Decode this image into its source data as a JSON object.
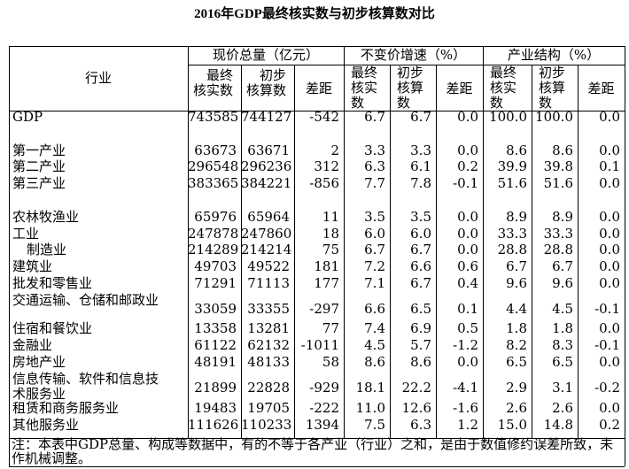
{
  "title": "2016年GDP最终核实数与初步核算数对比",
  "header": {
    "industry": "行业",
    "groups": [
      "现价总量（亿元）",
      "不变价增速（%）",
      "产业结构（%）"
    ],
    "sub": [
      "最终核实数",
      "初步核算数",
      "差距",
      "最终核实数",
      "初步核算数",
      "差距",
      "最终核实数",
      "初步核算数",
      "差距"
    ]
  },
  "rows": [
    {
      "industry": "GDP",
      "values": [
        "743585",
        "744127",
        "-542",
        "6.7",
        "6.7",
        "0.0",
        "100.0",
        "100.0",
        "0.0"
      ]
    },
    {
      "industry": "第一产业",
      "values": [
        "63673",
        "63671",
        "2",
        "3.3",
        "3.3",
        "0.0",
        "8.6",
        "8.6",
        "0.0"
      ]
    },
    {
      "industry": "第二产业",
      "values": [
        "296548",
        "296236",
        "312",
        "6.3",
        "6.1",
        "0.2",
        "39.9",
        "39.8",
        "0.1"
      ]
    },
    {
      "industry": "第三产业",
      "values": [
        "383365",
        "384221",
        "-856",
        "7.7",
        "7.8",
        "-0.1",
        "51.6",
        "51.6",
        "0.0"
      ]
    },
    {
      "industry": "农林牧渔业",
      "values": [
        "65976",
        "65964",
        "11",
        "3.5",
        "3.5",
        "0.0",
        "8.9",
        "8.9",
        "0.0"
      ]
    },
    {
      "industry": "工业",
      "values": [
        "247878",
        "247860",
        "18",
        "6.0",
        "6.0",
        "0.0",
        "33.3",
        "33.3",
        "0.0"
      ]
    },
    {
      "industry": "制造业",
      "values": [
        "214289",
        "214214",
        "75",
        "6.7",
        "6.7",
        "0.0",
        "28.8",
        "28.8",
        "0.0"
      ]
    },
    {
      "industry": "建筑业",
      "values": [
        "49703",
        "49522",
        "181",
        "7.2",
        "6.6",
        "0.6",
        "6.7",
        "6.7",
        "0.0"
      ]
    },
    {
      "industry": "批发和零售业",
      "values": [
        "71291",
        "71113",
        "177",
        "7.1",
        "6.7",
        "0.4",
        "9.6",
        "9.6",
        "0.0"
      ]
    },
    {
      "industry": "交通运输、仓储和邮政业",
      "values": [
        "33059",
        "33355",
        "-297",
        "6.6",
        "6.5",
        "0.1",
        "4.4",
        "4.5",
        "-0.1"
      ]
    },
    {
      "industry": "住宿和餐饮业",
      "values": [
        "13358",
        "13281",
        "77",
        "7.4",
        "6.9",
        "0.5",
        "1.8",
        "1.8",
        "0.0"
      ]
    },
    {
      "industry": "金融业",
      "values": [
        "61122",
        "62132",
        "-1011",
        "4.5",
        "5.7",
        "-1.2",
        "8.2",
        "8.3",
        "-0.1"
      ]
    },
    {
      "industry": "房地产业",
      "values": [
        "48191",
        "48133",
        "58",
        "8.6",
        "8.6",
        "0.0",
        "6.5",
        "6.5",
        "0.0"
      ]
    },
    {
      "industry": "信息传输、软件和信息技术服务业",
      "values": [
        "21899",
        "22828",
        "-929",
        "18.1",
        "22.2",
        "-4.1",
        "2.9",
        "3.1",
        "-0.2"
      ]
    },
    {
      "industry": "租赁和商务服务业",
      "values": [
        "19483",
        "19705",
        "-222",
        "11.0",
        "12.6",
        "-1.6",
        "2.6",
        "2.6",
        "0.0"
      ]
    },
    {
      "industry": "其他服务业",
      "values": [
        "111626",
        "110233",
        "1394",
        "7.5",
        "6.3",
        "1.2",
        "15.0",
        "14.8",
        "0.2"
      ]
    }
  ],
  "note": "注：本表中GDP总量、构成等数据中，有的不等于各产业（行业）之和，是由于数值修约误差所致，未作机械调整。"
}
